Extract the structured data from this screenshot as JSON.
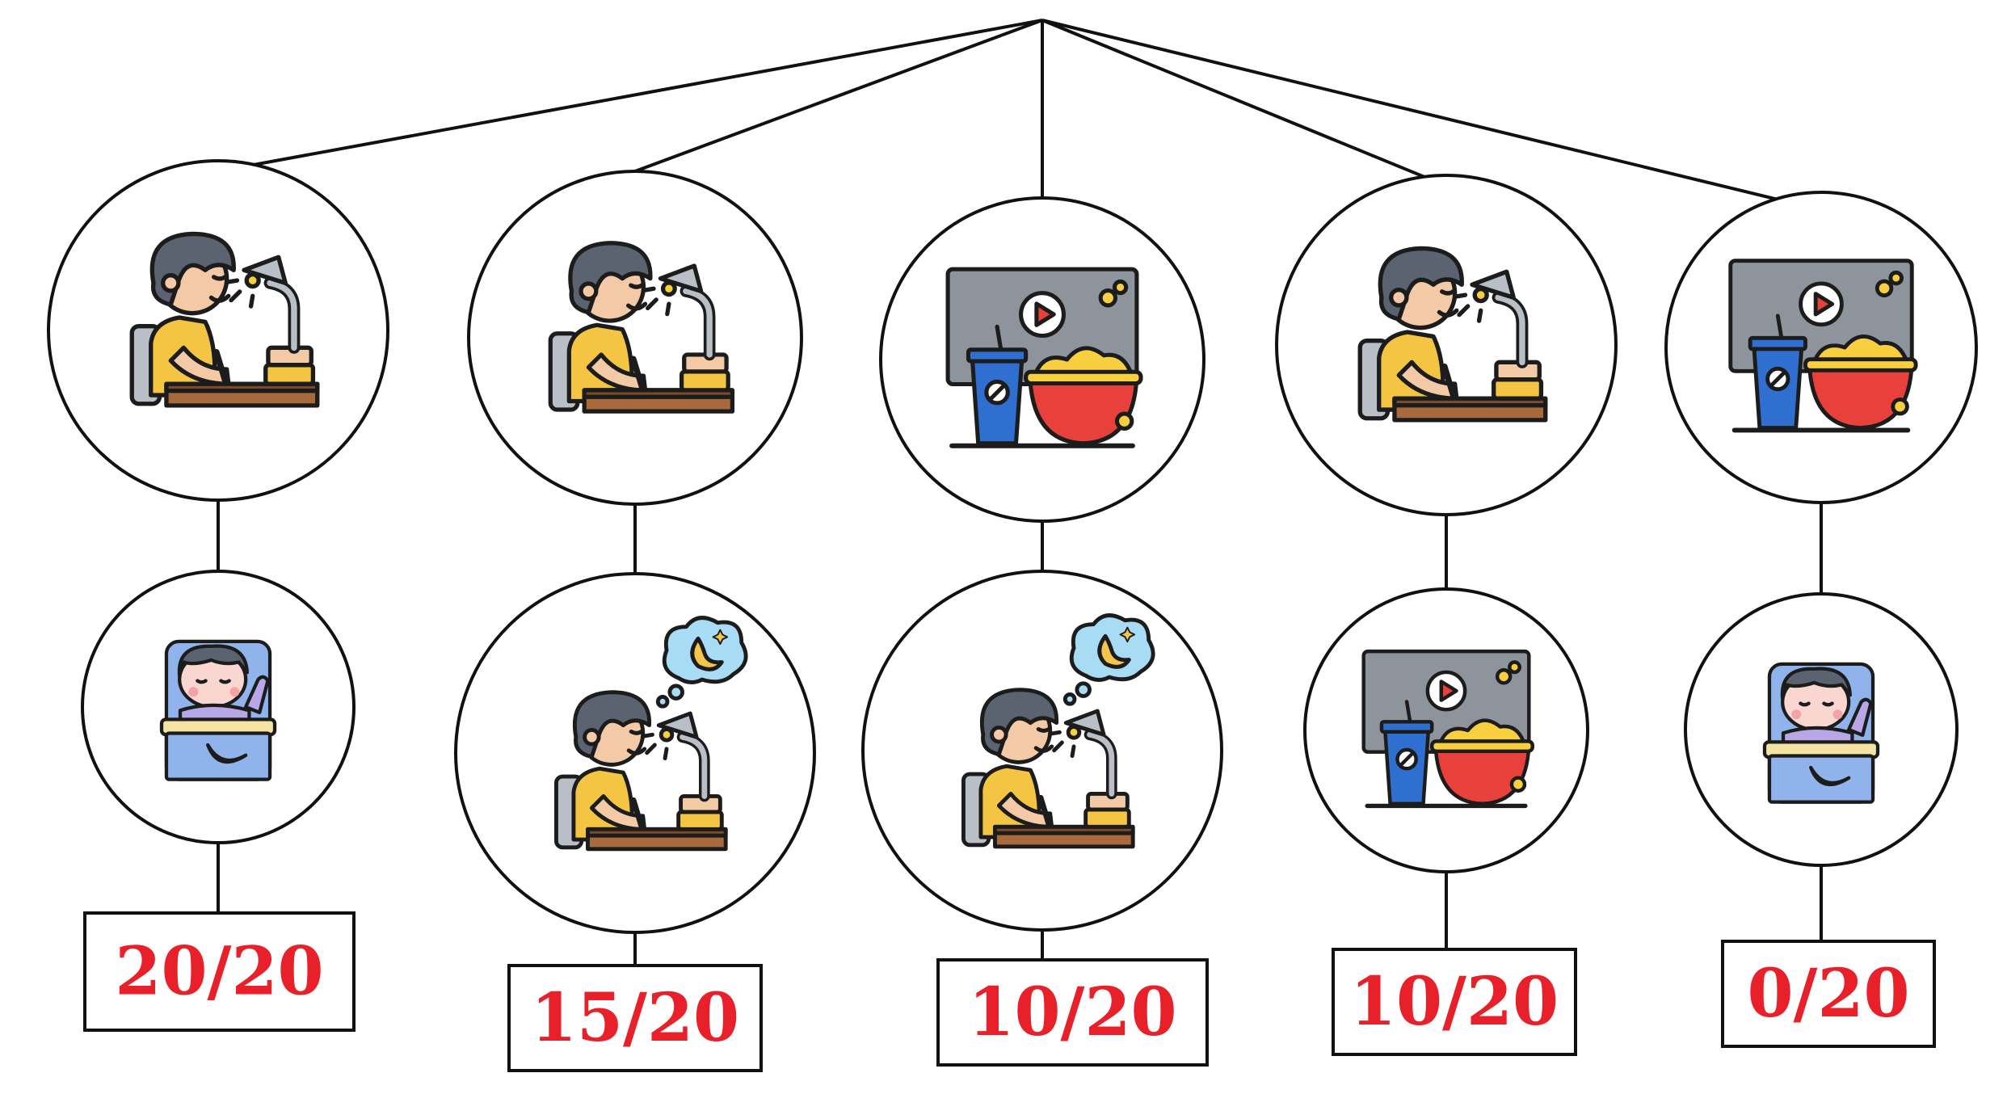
{
  "branches": [
    {
      "top": "study-icon",
      "bottom": "sleep-icon",
      "score": "20/20"
    },
    {
      "top": "study-icon",
      "bottom": "study-thinking-icon",
      "score": "15/20"
    },
    {
      "top": "tv-snack-icon",
      "bottom": "study-thinking-icon",
      "score": "10/20"
    },
    {
      "top": "study-icon",
      "bottom": "tv-snack-icon",
      "score": "10/20"
    },
    {
      "top": "tv-snack-icon",
      "bottom": "sleep-icon",
      "score": "0/20"
    }
  ],
  "colors": {
    "score_text": "#e8202a",
    "line": "#111111",
    "hair": "#5b6270",
    "skin": "#f3c9a6",
    "shirt": "#f4c542",
    "desk": "#a86a3d",
    "lamp": "#b9bec7",
    "tv": "#8e949c",
    "cup": "#2f6fcf",
    "bowl": "#e8413b",
    "popcorn": "#f7cf3f",
    "bed": "#8fb3ea",
    "pajama": "#b7a7e6",
    "cloud": "#a8dcf5",
    "moon": "#f3c54a"
  }
}
